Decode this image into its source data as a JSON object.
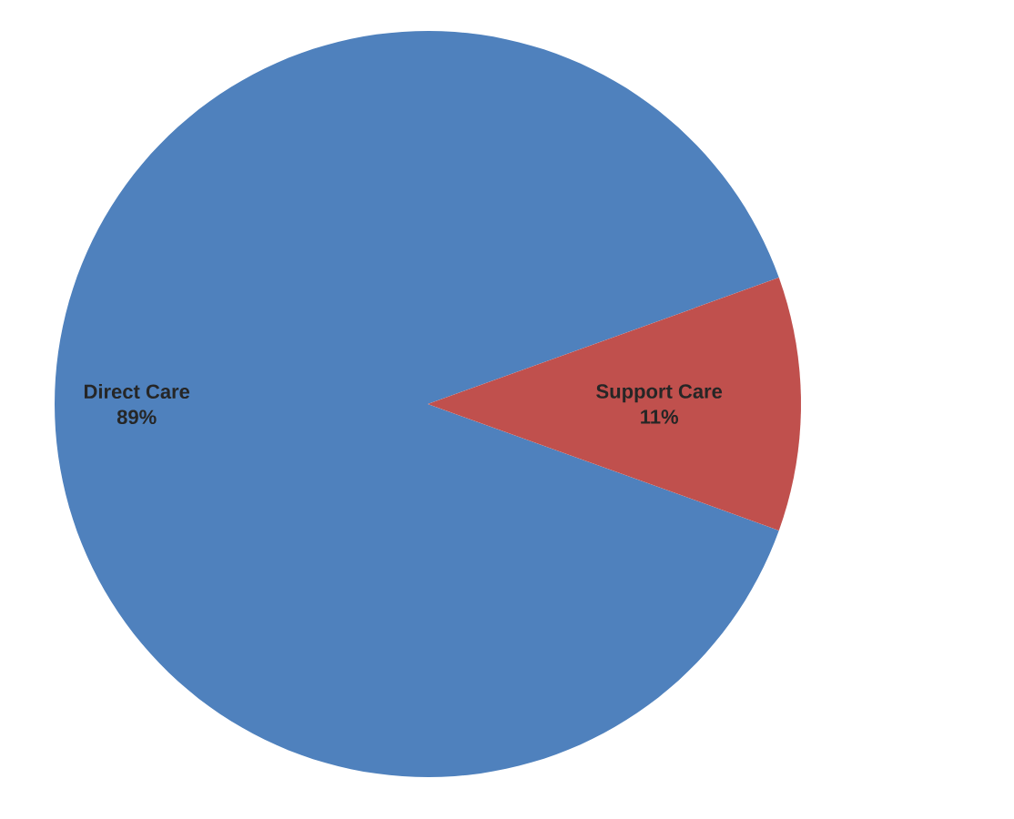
{
  "chart_data": {
    "type": "pie",
    "categories": [
      "Direct Care",
      "Support Care"
    ],
    "values": [
      89,
      11
    ],
    "value_labels": [
      "89%",
      "11%"
    ],
    "colors": [
      "#4f81bd",
      "#c0504d"
    ]
  }
}
